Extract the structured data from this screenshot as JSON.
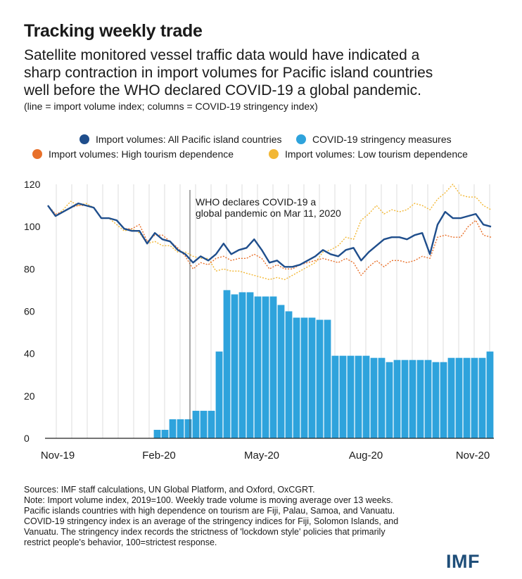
{
  "title": "Tracking weekly trade",
  "subtitle_lines": [
    "Satellite monitored vessel traffic data would have indicated a",
    "sharp contraction in import volumes for Pacific island countries",
    "well before the WHO declared COVID-19 a global pandemic."
  ],
  "chart_note": "(line = import volume index; columns = COVID-19 stringency index)",
  "legend": [
    {
      "label": "Import volumes: All Pacific island countries",
      "color": "#1f4e8c"
    },
    {
      "label": "COVID-19 stringency measures",
      "color": "#2ea3dc"
    },
    {
      "label": "Import volumes: High tourism dependence",
      "color": "#e8702a"
    },
    {
      "label": "Import volumes: Low tourism dependence",
      "color": "#f2b735"
    }
  ],
  "annotation_lines": [
    "WHO declares COVID-19 a",
    "global pandemic on Mar 11, 2020"
  ],
  "chart_data": {
    "type": "bar",
    "y_ticks": [
      0,
      20,
      40,
      60,
      80,
      100,
      120
    ],
    "x_ticks": [
      "Nov-19",
      "Feb-20",
      "May-20",
      "Aug-20",
      "Nov-20"
    ],
    "ylim": [
      0,
      120
    ],
    "grid": "vertical",
    "annotation": "WHO declares COVID-19 a global pandemic on Mar 11, 2020",
    "series": [
      {
        "name": "COVID-19 stringency measures",
        "type": "bar",
        "values": [
          0,
          0,
          0,
          0,
          0,
          0,
          0,
          0,
          0,
          0,
          0,
          0,
          0,
          0,
          4,
          4,
          9,
          9,
          9,
          13,
          13,
          13,
          41,
          70,
          68,
          69,
          69,
          67,
          67,
          67,
          63,
          60,
          57,
          57,
          57,
          56,
          56,
          39,
          39,
          39,
          39,
          39,
          38,
          38,
          36,
          37,
          37,
          37,
          37,
          37,
          36,
          36,
          38,
          38,
          38,
          38,
          38,
          41
        ]
      },
      {
        "name": "Import volumes: All Pacific island countries",
        "type": "line",
        "values": [
          110,
          105,
          107,
          109,
          111,
          110,
          109,
          104,
          104,
          103,
          99,
          98,
          98,
          92,
          97,
          94,
          93,
          89,
          87,
          83,
          86,
          84,
          87,
          92,
          87,
          89,
          90,
          94,
          89,
          83,
          84,
          81,
          81,
          82,
          84,
          86,
          89,
          87,
          86,
          89,
          90,
          84,
          88,
          91,
          94,
          95,
          95,
          94,
          96,
          97,
          87,
          101,
          107,
          104,
          104,
          105,
          106,
          101,
          100
        ]
      },
      {
        "name": "Import volumes: High tourism dependence",
        "type": "line",
        "values": [
          110,
          106,
          107,
          109,
          110,
          110,
          109,
          104,
          104,
          103,
          99,
          99,
          101,
          93,
          96,
          96,
          93,
          90,
          86,
          80,
          83,
          82,
          85,
          86,
          84,
          85,
          85,
          87,
          85,
          80,
          82,
          80,
          80,
          82,
          83,
          84,
          85,
          84,
          83,
          85,
          83,
          77,
          81,
          84,
          81,
          84,
          84,
          83,
          84,
          86,
          85,
          95,
          96,
          95,
          95,
          100,
          103,
          96,
          95
        ]
      },
      {
        "name": "Import volumes: Low tourism dependence",
        "type": "line",
        "values": [
          110,
          105,
          108,
          112,
          110,
          111,
          109,
          104,
          104,
          101,
          98,
          99,
          97,
          92,
          93,
          91,
          91,
          88,
          88,
          86,
          85,
          85,
          79,
          80,
          79,
          79,
          78,
          77,
          76,
          75,
          76,
          75,
          77,
          79,
          81,
          83,
          88,
          89,
          91,
          95,
          94,
          103,
          106,
          110,
          106,
          108,
          107,
          108,
          111,
          110,
          108,
          113,
          116,
          120,
          115,
          114,
          114,
          110,
          108
        ]
      }
    ]
  },
  "sources_lines": [
    "Sources: IMF staff calculations, UN Global Platform, and Oxford, OxCGRT.",
    "Note: Import volume index, 2019=100. Weekly trade volume is moving average over 13 weeks.",
    "Pacific islands countries with high dependence on tourism are Fiji, Palau, Samoa, and Vanuatu.",
    "COVID-19 stringency index is an average of the stringency indices for Fiji, Solomon Islands, and",
    "Vanuatu. The stringency index records the strictness of 'lockdown style' policies that primarily",
    "restrict people's behavior, 100=strictest response."
  ],
  "logo_text": "IMF"
}
